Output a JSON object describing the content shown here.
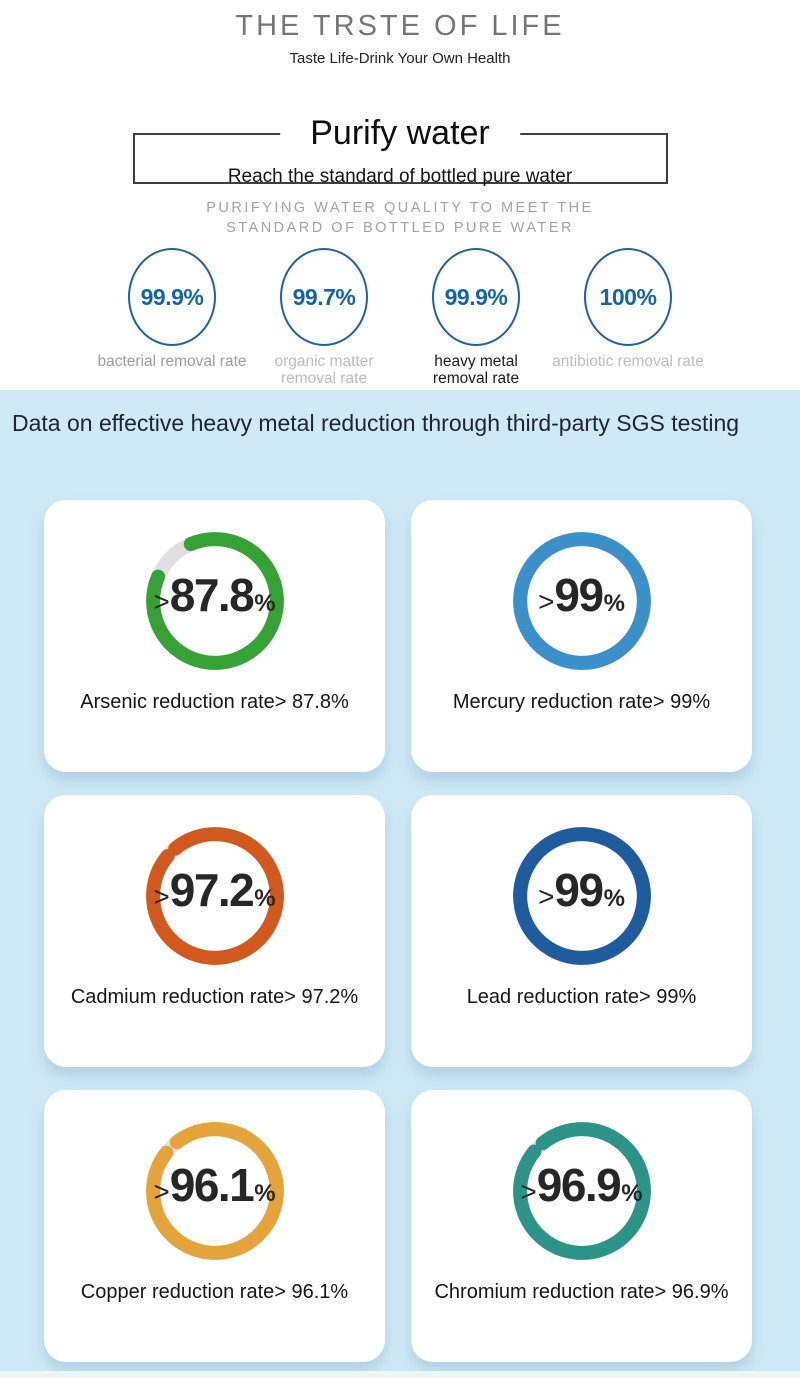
{
  "brand": {
    "title": "THE TRSTE OF LIFE",
    "tagline": "Taste Life-Drink Your Own Health"
  },
  "purify": {
    "title": "Purify water",
    "subtitle": "Reach the standard of bottled pure water",
    "caption_line1": "PURIFYING WATER QUALITY TO MEET THE",
    "caption_line2": "STANDARD OF BOTTLED PURE WATER"
  },
  "removal_stats": [
    {
      "value": "99.9%",
      "label": "bacterial removal rate"
    },
    {
      "value": "99.7%",
      "label": "organic matter removal rate"
    },
    {
      "value": "99.9%",
      "label": "heavy metal removal rate"
    },
    {
      "value": "100%",
      "label": "antibiotic removal rate"
    }
  ],
  "sgs_section": {
    "heading": "Data on effective heavy metal reduction through third-party SGS testing",
    "cards": [
      {
        "metal": "Arsenic",
        "prefix": ">",
        "display_value": "87.8",
        "percent_sign": "%",
        "percent": 87.8,
        "label": "Arsenic reduction rate> 87.8%",
        "ring_color": "#36a135"
      },
      {
        "metal": "Mercury",
        "prefix": ">",
        "display_value": "99",
        "percent_sign": "%",
        "percent": 99,
        "label": "Mercury reduction rate> 99%",
        "ring_color": "#3b90c9"
      },
      {
        "metal": "Cadmium",
        "prefix": ">",
        "display_value": "97.2",
        "percent_sign": "%",
        "percent": 97.2,
        "label": "Cadmium reduction rate> 97.2%",
        "ring_color": "#d2591d"
      },
      {
        "metal": "Lead",
        "prefix": ">",
        "display_value": "99",
        "percent_sign": "%",
        "percent": 99,
        "label": "Lead reduction rate> 99%",
        "ring_color": "#1e5c9e"
      },
      {
        "metal": "Copper",
        "prefix": ">",
        "display_value": "96.1",
        "percent_sign": "%",
        "percent": 96.1,
        "label": "Copper reduction rate> 96.1%",
        "ring_color": "#e5a33b"
      },
      {
        "metal": "Chromium",
        "prefix": ">",
        "display_value": "96.9",
        "percent_sign": "%",
        "percent": 96.9,
        "label": "Chromium reduction rate> 96.9%",
        "ring_color": "#2b9486"
      }
    ]
  },
  "colors": {
    "section_bg": "#cfe9f6",
    "accent_blue": "#1d60a6",
    "stat_value_blue": "#1463ad",
    "ring_track": "#e0e0e0",
    "card_bg": "#ffffff",
    "footer_strip": "#f3f3f4"
  },
  "chart_data": {
    "type": "pie",
    "title": "Data on effective heavy metal reduction through third-party SGS testing",
    "series": [
      {
        "name": "Arsenic reduction rate",
        "value": 87.8,
        "unit": "%",
        "qualifier": ">"
      },
      {
        "name": "Mercury reduction rate",
        "value": 99,
        "unit": "%",
        "qualifier": ">"
      },
      {
        "name": "Cadmium reduction rate",
        "value": 97.2,
        "unit": "%",
        "qualifier": ">"
      },
      {
        "name": "Lead reduction rate",
        "value": 99,
        "unit": "%",
        "qualifier": ">"
      },
      {
        "name": "Copper reduction rate",
        "value": 96.1,
        "unit": "%",
        "qualifier": ">"
      },
      {
        "name": "Chromium reduction rate",
        "value": 96.9,
        "unit": "%",
        "qualifier": ">"
      }
    ]
  }
}
